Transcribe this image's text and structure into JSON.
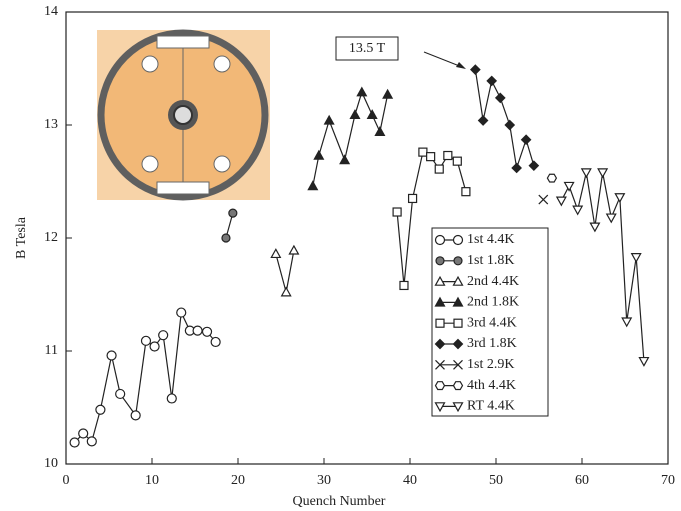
{
  "chart_data": {
    "type": "line",
    "x_label": "Quench Number",
    "y_label": "B Tesla",
    "annotation": "13.5 T",
    "xlim": [
      0,
      70
    ],
    "xticks": [
      0,
      10,
      20,
      30,
      40,
      50,
      60,
      70
    ],
    "ylim": [
      10,
      14
    ],
    "yticks": [
      10,
      11,
      12,
      13,
      14
    ],
    "grid": false,
    "legend": "center-right",
    "series": [
      {
        "name": "1st 4.4K",
        "color": "#222222",
        "marker": "circle-open",
        "x": [
          1,
          2,
          3,
          4,
          5.3,
          6.3,
          8.1,
          9.3,
          10.3,
          11.3,
          12.3,
          13.4,
          14.4,
          15.3,
          16.4,
          17.4
        ],
        "values": [
          10.19,
          10.27,
          10.2,
          10.48,
          10.96,
          10.62,
          10.43,
          11.09,
          11.04,
          11.14,
          10.58,
          11.34,
          11.18,
          11.18,
          11.17,
          11.08
        ]
      },
      {
        "name": "1st 1.8K",
        "color": "#222222",
        "marker": "circle-filled",
        "x": [
          18.6,
          19.4
        ],
        "values": [
          12.0,
          12.22
        ]
      },
      {
        "name": "2nd 4.4K",
        "color": "#222222",
        "marker": "triangle-open",
        "x": [
          24.4,
          25.6,
          26.5
        ],
        "values": [
          11.86,
          11.52,
          11.89
        ]
      },
      {
        "name": "2nd 1.8K",
        "color": "#222222",
        "marker": "triangle-filled",
        "x": [
          28.7,
          29.4,
          30.6,
          32.4,
          33.6,
          34.4,
          35.6,
          36.5,
          37.4
        ],
        "values": [
          12.46,
          12.73,
          13.04,
          12.69,
          13.09,
          13.29,
          13.09,
          12.94,
          13.27
        ]
      },
      {
        "name": "3rd 4.4K",
        "color": "#222222",
        "marker": "square-open",
        "x": [
          38.5,
          39.3,
          40.3,
          41.5,
          42.4,
          43.4,
          44.4,
          45.5,
          46.5
        ],
        "values": [
          12.23,
          11.58,
          12.35,
          12.76,
          12.72,
          12.61,
          12.73,
          12.68,
          12.41
        ]
      },
      {
        "name": "3rd 1.8K",
        "color": "#222222",
        "marker": "diamond-filled",
        "x": [
          47.6,
          48.5,
          49.5,
          50.5,
          51.6,
          52.4,
          53.5,
          54.4
        ],
        "values": [
          13.49,
          13.04,
          13.39,
          13.24,
          13.0,
          12.62,
          12.87,
          12.64
        ]
      },
      {
        "name": "1st 2.9K",
        "color": "#222222",
        "marker": "cross",
        "x": [
          55.5
        ],
        "values": [
          12.34
        ]
      },
      {
        "name": "4th 4.4K",
        "color": "#222222",
        "marker": "hexagon-open",
        "x": [
          56.5
        ],
        "values": [
          12.53
        ]
      },
      {
        "name": "RT  4.4K",
        "color": "#222222",
        "marker": "triangle-down-open",
        "x": [
          57.6,
          58.5,
          59.5,
          60.5,
          61.5,
          62.4,
          63.4,
          64.4,
          65.2,
          66.3,
          67.2
        ],
        "values": [
          12.33,
          12.46,
          12.25,
          12.58,
          12.1,
          12.58,
          12.18,
          12.36,
          11.26,
          11.83,
          10.91
        ]
      }
    ]
  }
}
